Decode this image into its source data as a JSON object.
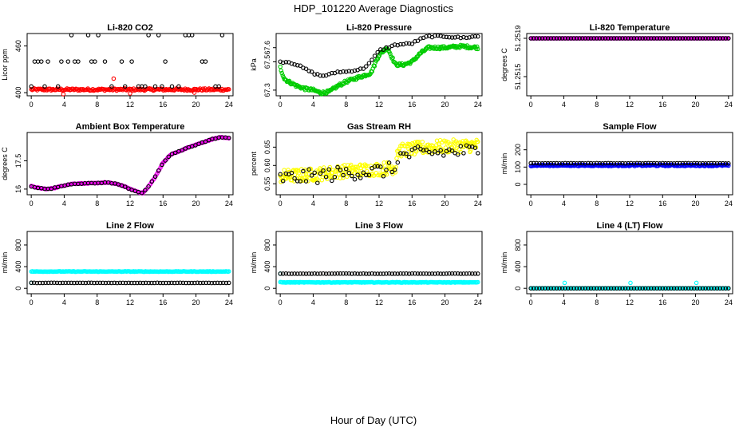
{
  "figure": {
    "title": "HDP_101220  Average Diagnostics",
    "xlabel": "Hour of Day (UTC)"
  },
  "colors": {
    "black": "#000000",
    "red": "#ff0000",
    "green": "#00cc00",
    "magenta": "#ee00ee",
    "yellow": "#ffff00",
    "blue": "#0000ff",
    "cyan": "#00ffff"
  },
  "chart_data": [
    {
      "type": "scatter",
      "title": "Li-820 CO2",
      "ylabel": "Licor ppm",
      "xlim": [
        -0.5,
        24.5
      ],
      "xticks": [
        0,
        4,
        8,
        12,
        16,
        20,
        24
      ],
      "ylim": [
        396,
        476
      ],
      "yticks": [
        400,
        460
      ],
      "series": [
        {
          "color": "#ff0000",
          "generator": "flat",
          "y": 404,
          "noise": 1.4,
          "n": 200,
          "extra": [
            [
              10,
              418
            ],
            [
              3.9,
              398
            ],
            [
              12,
              399
            ],
            [
              19.8,
              400
            ]
          ]
        },
        {
          "color": "#000000",
          "generator": "levels",
          "levels": [
            474,
            440,
            408,
            396
          ],
          "n": 60
        }
      ]
    },
    {
      "type": "scatter",
      "title": "Li-820 Pressure",
      "ylabel": "kPa",
      "xlim": [
        -0.5,
        24.5
      ],
      "xticks": [
        0,
        4,
        8,
        12,
        16,
        20,
        24
      ],
      "ylim": [
        67.26,
        67.7
      ],
      "yticks": [
        67.3,
        67.5,
        67.6
      ],
      "series": [
        {
          "color": "#00cc00",
          "generator": "path",
          "pts": [
            [
              0,
              67.46
            ],
            [
              0.5,
              67.38
            ],
            [
              1,
              67.36
            ],
            [
              2,
              67.33
            ],
            [
              3,
              67.31
            ],
            [
              4,
              67.3
            ],
            [
              5,
              67.28
            ],
            [
              6,
              67.29
            ],
            [
              7,
              67.33
            ],
            [
              8,
              67.36
            ],
            [
              9,
              67.38
            ],
            [
              10,
              67.4
            ],
            [
              11,
              67.42
            ],
            [
              12,
              67.55
            ],
            [
              13,
              67.6
            ],
            [
              14,
              67.48
            ],
            [
              15,
              67.48
            ],
            [
              16,
              67.5
            ],
            [
              17,
              67.56
            ],
            [
              18,
              67.6
            ],
            [
              20,
              67.6
            ],
            [
              22,
              67.61
            ],
            [
              24,
              67.6
            ]
          ],
          "noise": 0.01,
          "n": 240
        },
        {
          "color": "#000000",
          "generator": "path",
          "pts": [
            [
              0,
              67.5
            ],
            [
              1,
              67.5
            ],
            [
              2,
              67.48
            ],
            [
              3,
              67.45
            ],
            [
              4,
              67.42
            ],
            [
              5,
              67.4
            ],
            [
              6,
              67.41
            ],
            [
              7,
              67.43
            ],
            [
              8,
              67.43
            ],
            [
              9,
              67.44
            ],
            [
              10,
              67.45
            ],
            [
              11,
              67.5
            ],
            [
              12,
              67.58
            ],
            [
              13,
              67.6
            ],
            [
              14,
              67.62
            ],
            [
              16,
              67.63
            ],
            [
              17,
              67.66
            ],
            [
              18,
              67.68
            ],
            [
              20,
              67.68
            ],
            [
              22,
              67.67
            ],
            [
              24,
              67.68
            ]
          ],
          "noise": 0.006,
          "n": 70
        }
      ]
    },
    {
      "type": "scatter",
      "title": "Li-820 Temperature",
      "ylabel": "degrees C",
      "xlim": [
        -0.5,
        24.5
      ],
      "xticks": [
        0,
        4,
        8,
        12,
        16,
        20,
        24
      ],
      "ylim": [
        51.2513,
        51.25195
      ],
      "yticks": [
        51.2515,
        51.2519
      ],
      "ytick_labels": [
        "51.2515",
        "51.2519"
      ],
      "series": [
        {
          "color": "#ee00ee",
          "generator": "flat",
          "y": 51.2519,
          "noise": 0,
          "n": 200,
          "extra": [
            [
              1.1,
              51.2513
            ],
            [
              4.8,
              51.2513
            ]
          ]
        },
        {
          "color": "#000000",
          "generator": "flat",
          "y": 51.2519,
          "noise": 0,
          "n": 70
        }
      ]
    },
    {
      "type": "scatter",
      "title": "Ambient Box Temperature",
      "ylabel": "degrees C",
      "xlim": [
        -0.5,
        24.5
      ],
      "xticks": [
        0,
        4,
        8,
        12,
        16,
        20,
        24
      ],
      "ylim": [
        15.7,
        19.0
      ],
      "yticks": [
        16.0,
        17.5
      ],
      "series": [
        {
          "color": "#ee00ee",
          "generator": "path",
          "pts": [
            [
              0,
              16.15
            ],
            [
              1,
              16.05
            ],
            [
              2,
              16.0
            ],
            [
              3,
              16.08
            ],
            [
              4,
              16.2
            ],
            [
              5,
              16.28
            ],
            [
              6,
              16.3
            ],
            [
              7,
              16.3
            ],
            [
              8,
              16.32
            ],
            [
              9,
              16.35
            ],
            [
              10,
              16.3
            ],
            [
              11,
              16.2
            ],
            [
              12,
              16.0
            ],
            [
              13,
              15.85
            ],
            [
              13.5,
              15.78
            ],
            [
              14,
              16.0
            ],
            [
              15,
              16.6
            ],
            [
              16,
              17.4
            ],
            [
              17,
              17.85
            ],
            [
              18,
              18.0
            ],
            [
              19,
              18.2
            ],
            [
              20,
              18.35
            ],
            [
              21,
              18.5
            ],
            [
              22,
              18.65
            ],
            [
              23,
              18.75
            ],
            [
              24,
              18.7
            ]
          ],
          "noise": 0.02,
          "n": 200
        },
        {
          "color": "#000000",
          "generator": "path",
          "pts": [
            [
              0,
              16.15
            ],
            [
              1,
              16.05
            ],
            [
              2,
              16.0
            ],
            [
              3,
              16.08
            ],
            [
              4,
              16.2
            ],
            [
              5,
              16.28
            ],
            [
              6,
              16.3
            ],
            [
              7,
              16.3
            ],
            [
              8,
              16.32
            ],
            [
              9,
              16.35
            ],
            [
              10,
              16.3
            ],
            [
              11,
              16.2
            ],
            [
              12,
              16.0
            ],
            [
              13,
              15.85
            ],
            [
              13.5,
              15.78
            ],
            [
              14,
              16.0
            ],
            [
              15,
              16.6
            ],
            [
              16,
              17.4
            ],
            [
              17,
              17.85
            ],
            [
              18,
              18.0
            ],
            [
              19,
              18.2
            ],
            [
              20,
              18.35
            ],
            [
              21,
              18.5
            ],
            [
              22,
              18.65
            ],
            [
              23,
              18.75
            ],
            [
              24,
              18.7
            ]
          ],
          "noise": 0.02,
          "n": 60
        }
      ]
    },
    {
      "type": "scatter",
      "title": "Gas Stream RH",
      "ylabel": "percent",
      "xlim": [
        -0.5,
        24.5
      ],
      "xticks": [
        0,
        4,
        8,
        12,
        16,
        20,
        24
      ],
      "ylim": [
        0.52,
        0.69
      ],
      "yticks": [
        0.55,
        0.6,
        0.65
      ],
      "ytick_labels": [
        "0.55",
        "0.60",
        "0.65"
      ],
      "series": [
        {
          "color": "#ffff00",
          "generator": "path",
          "pts": [
            [
              0,
              0.57
            ],
            [
              4,
              0.575
            ],
            [
              8,
              0.585
            ],
            [
              12,
              0.59
            ],
            [
              14,
              0.595
            ],
            [
              14.2,
              0.64
            ],
            [
              18,
              0.65
            ],
            [
              24,
              0.655
            ]
          ],
          "noise": 0.018,
          "n": 300
        },
        {
          "color": "#000000",
          "generator": "path",
          "pts": [
            [
              0,
              0.565
            ],
            [
              4,
              0.57
            ],
            [
              8,
              0.58
            ],
            [
              12,
              0.585
            ],
            [
              14,
              0.59
            ],
            [
              14.2,
              0.625
            ],
            [
              18,
              0.635
            ],
            [
              24,
              0.64
            ]
          ],
          "noise": 0.02,
          "n": 70
        }
      ]
    },
    {
      "type": "scatter",
      "title": "Sample Flow",
      "ylabel": "ml/min",
      "xlim": [
        -0.5,
        24.5
      ],
      "xticks": [
        0,
        4,
        8,
        12,
        16,
        20,
        24
      ],
      "ylim": [
        -60,
        300
      ],
      "yticks": [
        0,
        100,
        200
      ],
      "series": [
        {
          "color": "#0000ff",
          "generator": "flat",
          "y": 110,
          "noise": 4,
          "n": 220
        },
        {
          "color": "#000000",
          "generator": "flat",
          "y": 122,
          "noise": 1,
          "n": 70
        }
      ]
    },
    {
      "type": "scatter",
      "title": "Line 2 Flow",
      "ylabel": "ml/min",
      "xlim": [
        -0.5,
        24.5
      ],
      "xticks": [
        0,
        4,
        8,
        12,
        16,
        20,
        24
      ],
      "ylim": [
        -100,
        1050
      ],
      "yticks": [
        0,
        400,
        800
      ],
      "series": [
        {
          "color": "#00ffff",
          "generator": "flat",
          "y": 310,
          "noise": 5,
          "n": 200,
          "extra": [
            [
              0,
              100
            ]
          ]
        },
        {
          "color": "#000000",
          "generator": "flat",
          "y": 100,
          "noise": 2,
          "n": 70
        }
      ]
    },
    {
      "type": "scatter",
      "title": "Line 3 Flow",
      "ylabel": "ml/min",
      "xlim": [
        -0.5,
        24.5
      ],
      "xticks": [
        0,
        4,
        8,
        12,
        16,
        20,
        24
      ],
      "ylim": [
        -100,
        1050
      ],
      "yticks": [
        0,
        400,
        800
      ],
      "series": [
        {
          "color": "#00ffff",
          "generator": "flat",
          "y": 110,
          "noise": 5,
          "n": 200,
          "extra": [
            [
              0,
              270
            ]
          ]
        },
        {
          "color": "#000000",
          "generator": "flat",
          "y": 270,
          "noise": 2,
          "n": 70
        }
      ]
    },
    {
      "type": "scatter",
      "title": "Line 4 (LT) Flow",
      "ylabel": "ml/min",
      "xlim": [
        -0.5,
        24.5
      ],
      "xticks": [
        0,
        4,
        8,
        12,
        16,
        20,
        24
      ],
      "ylim": [
        -100,
        1050
      ],
      "yticks": [
        0,
        400,
        800
      ],
      "series": [
        {
          "color": "#00ffff",
          "generator": "flat",
          "y": 0,
          "noise": 0,
          "n": 200,
          "extra": [
            [
              4.1,
              100
            ],
            [
              12.1,
              100
            ],
            [
              20.1,
              100
            ]
          ]
        },
        {
          "color": "#000000",
          "generator": "flat",
          "y": 0,
          "noise": 0,
          "n": 70
        }
      ]
    }
  ]
}
